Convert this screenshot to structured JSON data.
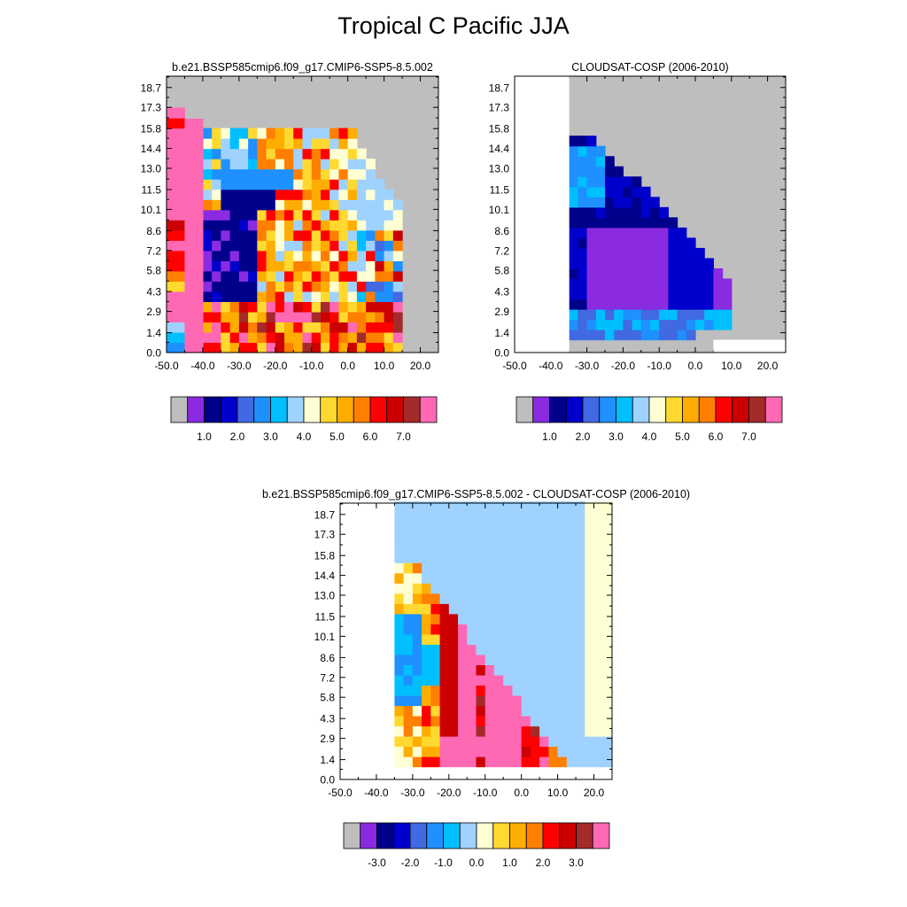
{
  "title": "Tropical C Pacific JJA",
  "colors": {
    "missing": "#bebebe",
    "abs_palette": [
      "#bebebe",
      "#8a2be2",
      "#00008b",
      "#0000cd",
      "#4169e1",
      "#1e90ff",
      "#00bfff",
      "#a0d2ff",
      "#ffffd4",
      "#ffd92f",
      "#ffad00",
      "#ff7f00",
      "#ff0000",
      "#cc0000",
      "#a52a2a",
      "#ff69b4"
    ],
    "diff_palette": [
      "#bebebe",
      "#8a2be2",
      "#00008b",
      "#0000cd",
      "#4169e1",
      "#1e90ff",
      "#00bfff",
      "#a0d2ff",
      "#ffffd4",
      "#ffd92f",
      "#ffad00",
      "#ff7f00",
      "#ff0000",
      "#cc0000",
      "#a52a2a",
      "#ff69b4"
    ]
  },
  "chart_data": [
    {
      "type": "heatmap",
      "title": "b.e21.BSSP585cmip6.f09_g17.CMIP6-SSP5-8.5.002",
      "xlabel": "",
      "ylabel": "",
      "xlim": [
        -50,
        25
      ],
      "ylim": [
        0,
        19.5
      ],
      "x_ticks": [
        "-50.0",
        "-40.0",
        "-30.0",
        "-20.0",
        "-10.0",
        "0.0",
        "10.0",
        "20.0"
      ],
      "y_ticks": [
        "0.0",
        "1.4",
        "2.9",
        "4.3",
        "5.8",
        "7.2",
        "8.6",
        "10.1",
        "11.5",
        "13.0",
        "14.4",
        "15.8",
        "17.3",
        "18.7"
      ],
      "colorbar_labels": [
        "1.0",
        "2.0",
        "3.0",
        "4.0",
        "5.0",
        "6.0",
        "7.0"
      ],
      "grid_rows_top_to_bottom": [
        "0000000000000000000000000000000000000",
        "F000000000000000000000000000000000000",
        "C000000000000000000000000000000000000",
        "F000000000000000000000000000000000000",
        "F000000000000000000000000000000000000",
        "F000000000000000000000000000000000000",
        "F000000000000000000000000000000000000",
        "F0006661110000000000000000000000000000",
        "F009994445500000000000000000000000000",
        "F00A9886798111000000000000000000000000",
        "F00FB88999BC6F7100000000000000000000000",
        "F0066887777CFC77611000000000000000000000",
        "F0066667766BCCAAA7F5000000000000000000000",
        "F0066667766BCCAAAAB7C500000000000000000000",
        "F0000000000000000000000000000000000000",
        "F0000000000000000000000000000000000000"
      ],
      "note": "grid rendered from cells list",
      "cells": []
    },
    {
      "type": "heatmap",
      "title": "CLOUDSAT-COSP (2006-2010)",
      "xlabel": "",
      "ylabel": "",
      "xlim": [
        -50,
        25
      ],
      "ylim": [
        0,
        19.5
      ],
      "x_ticks": [
        "-50.0",
        "-40.0",
        "-30.0",
        "-20.0",
        "-10.0",
        "0.0",
        "10.0",
        "20.0"
      ],
      "y_ticks": [
        "0.0",
        "1.4",
        "2.9",
        "4.3",
        "5.8",
        "7.2",
        "8.6",
        "10.1",
        "11.5",
        "13.0",
        "14.4",
        "15.8",
        "17.3",
        "18.7"
      ],
      "colorbar_labels": [
        "1.0",
        "2.0",
        "3.0",
        "4.0",
        "5.0",
        "6.0",
        "7.0"
      ]
    },
    {
      "type": "heatmap",
      "title": "b.e21.BSSP585cmip6.f09_g17.CMIP6-SSP5-8.5.002 - CLOUDSAT-COSP (2006-2010)",
      "xlabel": "",
      "ylabel": "",
      "xlim": [
        -50,
        25
      ],
      "ylim": [
        0,
        19.5
      ],
      "x_ticks": [
        "-50.0",
        "-40.0",
        "-30.0",
        "-20.0",
        "-10.0",
        "0.0",
        "10.0",
        "20.0"
      ],
      "y_ticks": [
        "0.0",
        "1.4",
        "2.9",
        "4.3",
        "5.8",
        "7.2",
        "8.6",
        "10.1",
        "11.5",
        "13.0",
        "14.4",
        "15.8",
        "17.3",
        "18.7"
      ],
      "colorbar_labels": [
        "-3.0",
        "-2.0",
        "-1.0",
        "0.0",
        "1.0",
        "2.0",
        "3.0"
      ]
    }
  ],
  "fields": {
    "model": [
      "................................",
      "F...............................",
      "C...............................",
      "F...............................",
      "F...............................",
      "F...............................",
      "F...............................",
      "F.114431........................",
      "F.AAEE46EE2.....................",
      "F.98AA66BA3.....................",
      "F.9A8A7B9A32....................",
      "F.A7A7888BD1....................",
      "F.E8AEA9BCEA1...................",
      "F.555557AC8A5...................",
      "F.555557AC7A54..................",
      "F.2222259BA8A53.................",
      "F.2222229AAA853.................",
      "F.2123229B9A892.................",
      "D.1..2.29BCC9I5.................",
      "B.1..111AIEDBB71................",
      "C.12.17128BCDBF71...............",
      "C.112.7229AC8D7A................",
      "F.113.127B9BD77C2...............",
      "B.223.21999A9BCF2...............",
      "A.222345999E9BDE2...............",
      "8.222122A9DC9A7BC...............",
      "9.1234239ACADB9D5...............",
      "A.C3DBBCBABCDCFEC...............",
      "F.DBDBFDBCDEAEEDB...............",
      "7.5FCFBBDBAADECB4...............",
      "5.476FFF9BBAE9CB3...............",
      "4.56FFFF9DD..E..................",
      "................................"
    ]
  }
}
